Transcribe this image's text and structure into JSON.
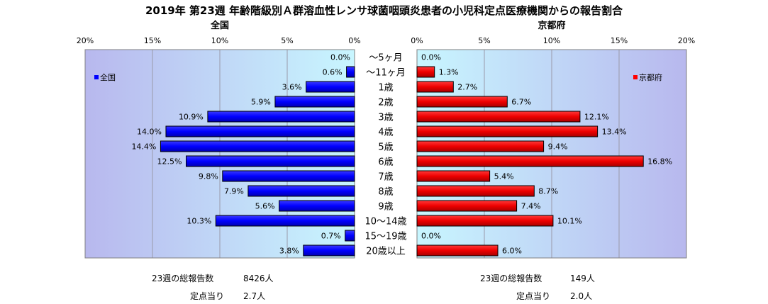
{
  "title": "2019年 第23週 年齢階級別Ａ群溶血性レンサ球菌咽頭炎患者の小児科定点医療機関からの報告割合",
  "footer": {
    "left_total_label": "23週の総報告数",
    "left_total_value": "8426人",
    "left_per_label": "定点当り",
    "left_per_value": "2.7人",
    "right_total_label": "23週の総報告数",
    "right_total_value": "149人",
    "right_per_label": "定点当り",
    "right_per_value": "2.0人"
  },
  "chart_data": [
    {
      "type": "bar",
      "orientation": "horizontal",
      "direction": "right-to-left",
      "title": "全国",
      "categories": [
        "～5ヶ月",
        "～11ヶ月",
        "1歳",
        "2歳",
        "3歳",
        "4歳",
        "5歳",
        "6歳",
        "7歳",
        "8歳",
        "9歳",
        "10～14歳",
        "15～19歳",
        "20歳以上"
      ],
      "series": [
        {
          "name": "全国",
          "values": [
            0.0,
            0.6,
            3.6,
            5.9,
            10.9,
            14.0,
            14.4,
            12.5,
            9.8,
            7.9,
            5.6,
            10.3,
            0.7,
            3.8
          ],
          "color": "#0000ff"
        }
      ],
      "data_labels": [
        "0.0%",
        "0.6%",
        "3.6%",
        "5.9%",
        "10.9%",
        "14.0%",
        "14.4%",
        "12.5%",
        "9.8%",
        "7.9%",
        "5.6%",
        "10.3%",
        "0.7%",
        "3.8%"
      ],
      "xlim": [
        0,
        20
      ],
      "ticks": [
        "0%",
        "5%",
        "10%",
        "15%",
        "20%"
      ],
      "legend": "top-left",
      "grid": true,
      "plot_background": [
        "#b8b8ee",
        "#c8f6ff"
      ]
    },
    {
      "type": "bar",
      "orientation": "horizontal",
      "direction": "left-to-right",
      "title": "京都府",
      "categories": [
        "～5ヶ月",
        "～11ヶ月",
        "1歳",
        "2歳",
        "3歳",
        "4歳",
        "5歳",
        "6歳",
        "7歳",
        "8歳",
        "9歳",
        "10～14歳",
        "15～19歳",
        "20歳以上"
      ],
      "series": [
        {
          "name": "京都府",
          "values": [
            0.0,
            1.3,
            2.7,
            6.7,
            12.1,
            13.4,
            9.4,
            16.8,
            5.4,
            8.7,
            7.4,
            10.1,
            0.0,
            6.0
          ],
          "color": "#ff0000"
        }
      ],
      "data_labels": [
        "0.0%",
        "1.3%",
        "2.7%",
        "6.7%",
        "12.1%",
        "13.4%",
        "9.4%",
        "16.8%",
        "5.4%",
        "8.7%",
        "7.4%",
        "10.1%",
        "0.0%",
        "6.0%"
      ],
      "xlim": [
        0,
        20
      ],
      "ticks": [
        "0%",
        "5%",
        "10%",
        "15%",
        "20%"
      ],
      "legend": "top-right",
      "grid": true,
      "plot_background": [
        "#c8f6ff",
        "#b8b8ee"
      ]
    }
  ]
}
